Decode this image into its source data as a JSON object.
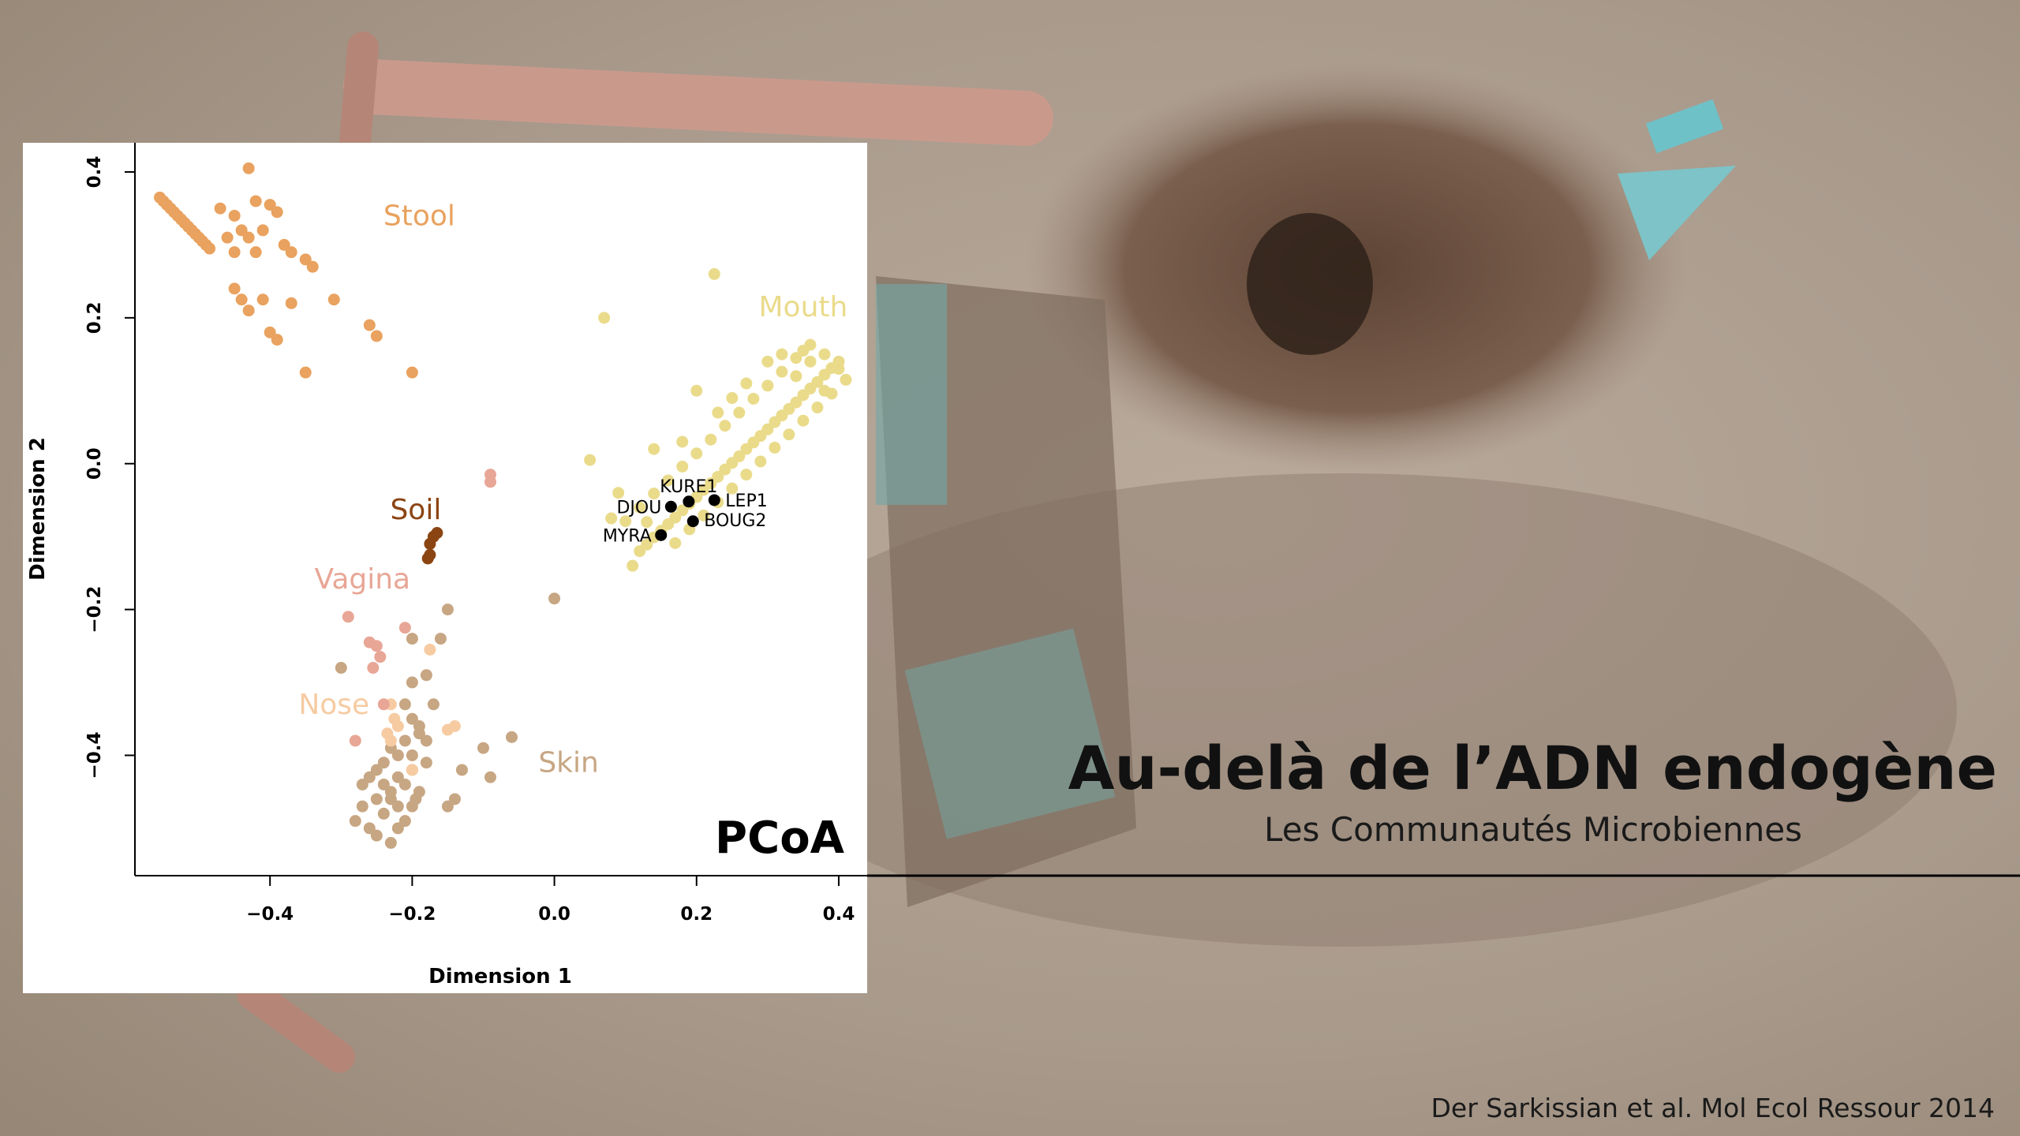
{
  "title": "Au-delà de l’ADN endogène",
  "subtitle": "Les Communautés Microbiennes",
  "credit": "Der Sarkissian et al. Mol Ecol Ressour 2014",
  "chart_data": {
    "type": "scatter",
    "title": "PCoA",
    "xlabel": "Dimension 1",
    "ylabel": "Dimension 2",
    "xlim": [
      -0.59,
      0.44
    ],
    "ylim": [
      -0.565,
      0.44
    ],
    "xticks": [
      {
        "value": -0.4,
        "label": "−0.4"
      },
      {
        "value": -0.2,
        "label": "−0.2"
      },
      {
        "value": 0,
        "label": "0.0"
      },
      0.2,
      0.4
    ],
    "yticks": [
      {
        "value": -0.4,
        "label": "−0.4"
      },
      {
        "value": -0.2,
        "label": "−0.2"
      },
      {
        "value": 0,
        "label": "0.0"
      },
      0.2,
      0.4
    ],
    "series": [
      {
        "name": "Stool",
        "color": "#e9a25f",
        "x": [
          -0.555,
          -0.55,
          -0.545,
          -0.54,
          -0.535,
          -0.53,
          -0.525,
          -0.52,
          -0.515,
          -0.51,
          -0.505,
          -0.5,
          -0.495,
          -0.49,
          -0.485,
          -0.43,
          -0.47,
          -0.45,
          -0.42,
          -0.4,
          -0.39,
          -0.44,
          -0.46,
          -0.43,
          -0.41,
          -0.45,
          -0.42,
          -0.38,
          -0.37,
          -0.35,
          -0.34,
          -0.45,
          -0.44,
          -0.43,
          -0.41,
          -0.37,
          -0.31,
          -0.4,
          -0.39,
          -0.26,
          -0.25,
          -0.35,
          -0.2
        ],
        "y": [
          0.365,
          0.36,
          0.355,
          0.35,
          0.345,
          0.34,
          0.335,
          0.33,
          0.325,
          0.32,
          0.315,
          0.31,
          0.305,
          0.3,
          0.295,
          0.405,
          0.35,
          0.34,
          0.36,
          0.355,
          0.345,
          0.32,
          0.31,
          0.31,
          0.32,
          0.29,
          0.29,
          0.3,
          0.29,
          0.28,
          0.27,
          0.24,
          0.225,
          0.21,
          0.225,
          0.22,
          0.225,
          0.18,
          0.17,
          0.19,
          0.175,
          0.125,
          0.125
        ]
      },
      {
        "name": "Mouth",
        "color": "#eadb8b",
        "x": [
          0.12,
          0.13,
          0.14,
          0.15,
          0.16,
          0.17,
          0.18,
          0.19,
          0.2,
          0.21,
          0.22,
          0.23,
          0.24,
          0.25,
          0.26,
          0.27,
          0.28,
          0.29,
          0.3,
          0.31,
          0.32,
          0.33,
          0.34,
          0.35,
          0.36,
          0.37,
          0.38,
          0.39,
          0.4,
          0.1,
          0.12,
          0.14,
          0.16,
          0.18,
          0.2,
          0.22,
          0.24,
          0.26,
          0.28,
          0.3,
          0.32,
          0.34,
          0.36,
          0.38,
          0.17,
          0.19,
          0.21,
          0.23,
          0.25,
          0.27,
          0.29,
          0.31,
          0.33,
          0.35,
          0.37,
          0.39,
          0.41,
          0.225,
          0.07,
          0.05,
          0.11,
          0.08,
          0.09,
          0.3,
          0.32,
          0.34,
          0.36,
          0.38,
          0.4,
          0.35,
          0.27,
          0.25,
          0.23,
          0.2,
          0.18,
          0.14,
          0.13
        ],
        "y": [
          -0.12,
          -0.111,
          -0.101,
          -0.092,
          -0.083,
          -0.074,
          -0.064,
          -0.055,
          -0.046,
          -0.036,
          -0.027,
          -0.018,
          -0.008,
          0.001,
          0.01,
          0.02,
          0.029,
          0.038,
          0.047,
          0.057,
          0.066,
          0.075,
          0.084,
          0.094,
          0.103,
          0.112,
          0.122,
          0.131,
          0.14,
          -0.079,
          -0.06,
          -0.041,
          -0.023,
          -0.004,
          0.014,
          0.033,
          0.052,
          0.07,
          0.089,
          0.107,
          0.126,
          0.145,
          0.163,
          0.15,
          -0.109,
          -0.09,
          -0.071,
          -0.053,
          -0.034,
          -0.015,
          0.003,
          0.022,
          0.04,
          0.059,
          0.077,
          0.096,
          0.115,
          0.26,
          0.2,
          0.005,
          -0.14,
          -0.075,
          -0.04,
          0.14,
          0.15,
          0.12,
          0.14,
          0.1,
          0.13,
          0.155,
          0.11,
          0.09,
          0.07,
          0.1,
          0.03,
          0.02,
          -0.08
        ]
      },
      {
        "name": "Soil",
        "color": "#8b4513",
        "x": [
          -0.17,
          -0.165,
          -0.175,
          -0.178,
          -0.175
        ],
        "y": [
          -0.1,
          -0.095,
          -0.11,
          -0.13,
          -0.125
        ]
      },
      {
        "name": "Vagina",
        "color": "#e8a696",
        "x": [
          -0.09,
          -0.09,
          -0.29,
          -0.26,
          -0.25,
          -0.245,
          -0.255,
          -0.21,
          -0.28,
          -0.24
        ],
        "y": [
          -0.015,
          -0.025,
          -0.21,
          -0.245,
          -0.25,
          -0.265,
          -0.28,
          -0.225,
          -0.38,
          -0.33
        ]
      },
      {
        "name": "Nose",
        "color": "#f6cba2",
        "x": [
          -0.23,
          -0.22,
          -0.235,
          -0.23,
          -0.15,
          -0.14,
          -0.175,
          -0.2,
          -0.225
        ],
        "y": [
          -0.33,
          -0.36,
          -0.37,
          -0.38,
          -0.365,
          -0.36,
          -0.255,
          -0.42,
          -0.35
        ]
      },
      {
        "name": "Skin",
        "color": "#c7a683",
        "x": [
          -0.28,
          -0.27,
          -0.26,
          -0.25,
          -0.24,
          -0.23,
          -0.22,
          -0.21,
          -0.2,
          -0.24,
          -0.23,
          -0.22,
          -0.21,
          -0.2,
          -0.19,
          -0.25,
          -0.26,
          -0.24,
          -0.22,
          -0.21,
          -0.2,
          -0.23,
          -0.19,
          -0.18,
          -0.2,
          -0.21,
          -0.2,
          -0.23,
          -0.22,
          -0.25,
          -0.27,
          -0.18,
          -0.195,
          -0.3,
          -0.2,
          -0.15,
          -0.16,
          -0.06,
          -0.1,
          -0.09,
          -0.13,
          -0.14,
          -0.15,
          0.0,
          -0.18,
          -0.17,
          -0.19
        ],
        "y": [
          -0.49,
          -0.47,
          -0.5,
          -0.51,
          -0.48,
          -0.52,
          -0.5,
          -0.49,
          -0.47,
          -0.44,
          -0.45,
          -0.43,
          -0.44,
          -0.42,
          -0.45,
          -0.46,
          -0.43,
          -0.41,
          -0.4,
          -0.38,
          -0.4,
          -0.39,
          -0.37,
          -0.41,
          -0.35,
          -0.33,
          -0.3,
          -0.46,
          -0.47,
          -0.42,
          -0.44,
          -0.38,
          -0.46,
          -0.28,
          -0.24,
          -0.2,
          -0.24,
          -0.375,
          -0.39,
          -0.43,
          -0.42,
          -0.46,
          -0.47,
          -0.185,
          -0.29,
          -0.33,
          -0.36
        ]
      }
    ],
    "samples": {
      "color": "#000000",
      "names": [
        "KURE1",
        "DJOU",
        "LEP1",
        "BOUG2",
        "MYRA"
      ],
      "x": [
        0.189,
        0.164,
        0.225,
        0.195,
        0.15
      ],
      "y": [
        -0.052,
        -0.059,
        -0.05,
        -0.079,
        -0.098
      ]
    }
  }
}
